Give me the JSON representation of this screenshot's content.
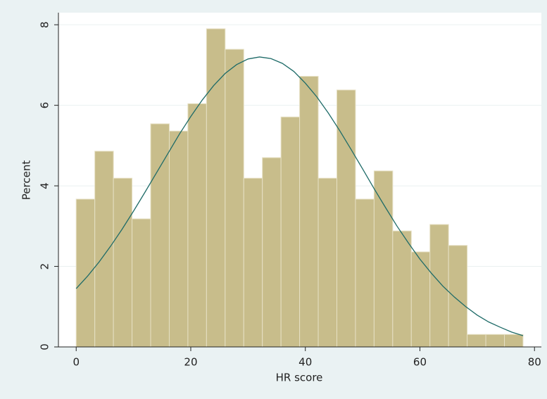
{
  "chart_data": {
    "type": "histogram",
    "xlabel": "HR score",
    "ylabel": "Percent",
    "bins": [
      0,
      3.25,
      6.5,
      9.75,
      13,
      16.25,
      19.5,
      22.75,
      26,
      29.25,
      32.5,
      35.75,
      39,
      42.25,
      45.5,
      48.75,
      52,
      55.25,
      58.5,
      61.75,
      65,
      68.25,
      71.5,
      74.75,
      78
    ],
    "values": [
      3.67,
      4.86,
      4.19,
      3.18,
      5.54,
      5.36,
      6.04,
      7.9,
      7.39,
      4.19,
      4.7,
      5.71,
      6.72,
      4.19,
      6.38,
      3.67,
      4.37,
      2.88,
      2.36,
      3.04,
      2.52,
      0.31,
      0.31,
      0.31
    ],
    "color": "#c8bd8b",
    "curve": {
      "color": "#1e6b68",
      "x": [
        0,
        2,
        4,
        6,
        8,
        10,
        12,
        14,
        16,
        18,
        20,
        22,
        24,
        26,
        28,
        30,
        32,
        34,
        36,
        38,
        40,
        42,
        44,
        46,
        48,
        50,
        52,
        54,
        56,
        58,
        60,
        62,
        64,
        66,
        68,
        70,
        72,
        74,
        76,
        78
      ],
      "y": [
        1.45,
        1.76,
        2.11,
        2.5,
        2.92,
        3.37,
        3.84,
        4.32,
        4.8,
        5.28,
        5.72,
        6.13,
        6.49,
        6.79,
        7.01,
        7.15,
        7.2,
        7.16,
        7.04,
        6.84,
        6.55,
        6.21,
        5.81,
        5.37,
        4.9,
        4.42,
        3.93,
        3.46,
        3.0,
        2.58,
        2.18,
        1.83,
        1.51,
        1.24,
        1.0,
        0.79,
        0.62,
        0.49,
        0.37,
        0.28
      ]
    },
    "xlim": [
      -3.1,
      81.2
    ],
    "ylim": [
      0,
      8.3
    ],
    "xticks": [
      0,
      20,
      40,
      60,
      80
    ],
    "yticks": [
      0,
      2,
      4,
      6,
      8
    ],
    "grid": true
  }
}
